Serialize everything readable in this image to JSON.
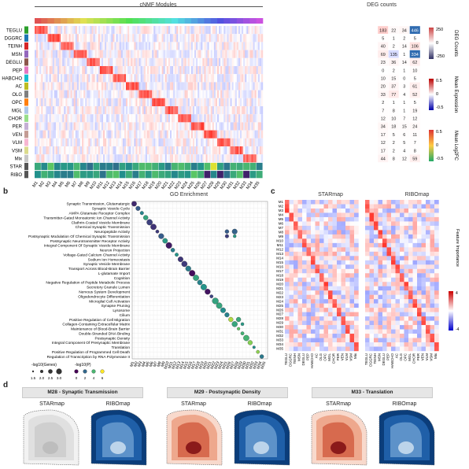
{
  "panel_a": {
    "header_left": "cNMF Modules",
    "header_right": "DEG counts",
    "row_labels": [
      "TEGLU",
      "DGGRC",
      "TEINH",
      "MSN",
      "DEGLU",
      "PEP",
      "HABCHO",
      "AC",
      "OLG",
      "OPC",
      "MGL",
      "CHOR",
      "PER",
      "VEN",
      "VLM",
      "VSM",
      "Mix",
      "STAR",
      "RIBO"
    ],
    "row_colors": [
      "#2ca02c",
      "#1f77b4",
      "#d62728",
      "#9467bd",
      "#8c564b",
      "#e377c2",
      "#17becf",
      "#bcbd22",
      "#7f7f7f",
      "#ff7f0e",
      "#aec7e8",
      "#98df8a",
      "#c5b0d5",
      "#c49c94",
      "#f7b6d2",
      "#dbdb8d",
      "#c7c7c7",
      "#555555",
      "#555555"
    ],
    "modules": [
      "M1",
      "M2",
      "M3",
      "M4",
      "M5",
      "M6",
      "M7",
      "M8",
      "M9",
      "M10",
      "M11",
      "M12",
      "M13",
      "M14",
      "M15",
      "M16",
      "M17",
      "M18",
      "M19",
      "M20",
      "M21",
      "M22",
      "M23",
      "M24",
      "M25",
      "M26",
      "M27",
      "M28",
      "M29",
      "M30",
      "M31",
      "M32",
      "M33",
      "M34",
      "M35"
    ],
    "deg_counts": [
      [
        "183",
        "22",
        "34",
        "446"
      ],
      [
        "5",
        "1",
        "2",
        "5"
      ],
      [
        "40",
        "2",
        "14",
        "106"
      ],
      [
        "69",
        "135",
        "1",
        "334"
      ],
      [
        "23",
        "36",
        "14",
        "62"
      ],
      [
        "0",
        "2",
        "1",
        "10"
      ],
      [
        "10",
        "15",
        "0",
        "5"
      ],
      [
        "20",
        "37",
        "3",
        "61"
      ],
      [
        "33",
        "77",
        "4",
        "52"
      ],
      [
        "2",
        "1",
        "1",
        "5"
      ],
      [
        "7",
        "8",
        "1",
        "19"
      ],
      [
        "12",
        "10",
        "7",
        "12"
      ],
      [
        "34",
        "18",
        "15",
        "24"
      ],
      [
        "17",
        "5",
        "6",
        "11"
      ],
      [
        "12",
        "2",
        "5",
        "7"
      ],
      [
        "17",
        "2",
        "4",
        "8"
      ],
      [
        "44",
        "8",
        "12",
        "59"
      ]
    ],
    "cbar1": {
      "title": "DEG Counts",
      "ticks": [
        "250",
        "0",
        "-250"
      ]
    },
    "cbar2": {
      "title": "Mean Expression",
      "ticks": [
        "0.5",
        "0",
        "-0.5"
      ]
    },
    "cbar3": {
      "title": "Mean Log2FC",
      "ticks": [
        "0.5",
        "0",
        "-0.5"
      ]
    }
  },
  "panel_b": {
    "letter": "b",
    "title": "GO Enrichment",
    "terms": [
      "Synaptic Transmission, Glutamatergic",
      "Synaptic Vesicle Cycle",
      "AMPA Glutamate Receptor Complex",
      "Transmitter-Gated Monoatomic Ion Channel Activity",
      "Clathrin-Coated Vesicle Membrane",
      "Chemical Synaptic Transmission",
      "Neuropeptide Activity",
      "Postsynaptic Modulation Of Chemical Synaptic Transmission",
      "Postsynaptic Neurotransmitter Receptor Activity",
      "Integral Component Of Synaptic Vesicle Membrane",
      "Neuron Projection",
      "Voltage-Gated Calcium Channel Activity",
      "Sodium Ion Homeostasis",
      "Synaptic Vesicle Membrane",
      "Transport Across Blood-Brain Barrier",
      "L-glutamate Import",
      "Cognition",
      "Negative Regulation of Peptide Metabolic Process",
      "Secretory Granule Lumen",
      "Nervous System Development",
      "Oligodendrocyte Differentiation",
      "Microglial Cell Activation",
      "Synapse Pruning",
      "Lysosome",
      "Cilium",
      "Positive Regulation of Cell Migration",
      "Collagen-Containing Extracellular Matrix",
      "Maintenance of Blood-Brain Barrier",
      "Double-Stranded DNA Binding",
      "Postsynaptic Density",
      "Integral Component Of Presynaptic Membrane",
      "Translation",
      "Positive Regulation of Programmed Cell Death",
      "Regulation of Transcription by RNA Polymerase II"
    ],
    "modules": [
      "M1",
      "M2",
      "M3",
      "M4",
      "M5",
      "M6",
      "M7",
      "M8",
      "M9",
      "M10",
      "M11",
      "M12",
      "M13",
      "M14",
      "M15",
      "M16",
      "M17",
      "M18",
      "M19",
      "M20",
      "M21",
      "M22",
      "M23",
      "M24",
      "M25",
      "M26",
      "M27",
      "M28",
      "M29",
      "M30",
      "M31",
      "M32",
      "M33",
      "M34",
      "M35"
    ],
    "size_legend_title": "-log10(Genes)",
    "size_legend_ticks": [
      "1.5",
      "2.0",
      "2.5",
      "3.0"
    ],
    "color_legend_title": "-log10(P)",
    "color_legend_ticks": [
      "0",
      "2",
      "4",
      "6"
    ]
  },
  "panel_c": {
    "letter": "c",
    "left_title": "STARmap",
    "right_title": "RIBOmap",
    "side_label": "Feature Importance",
    "scale_ticks": [
      "4",
      "-4"
    ],
    "cell_types": [
      "TEGLU",
      "DGGRC",
      "TEINH",
      "MSN",
      "DEGLU",
      "PEP",
      "HABCHO",
      "AC",
      "OLG",
      "OPC",
      "MGL",
      "CHOR",
      "PER",
      "VEN",
      "VLM",
      "VSM",
      "Mix"
    ],
    "modules": [
      "M1",
      "M2",
      "M3",
      "M4",
      "M5",
      "M6",
      "M7",
      "M8",
      "M9",
      "M10",
      "M11",
      "M12",
      "M13",
      "M14",
      "M15",
      "M16",
      "M17",
      "M18",
      "M19",
      "M20",
      "M21",
      "M22",
      "M23",
      "M24",
      "M25",
      "M26",
      "M27",
      "M28",
      "M29",
      "M30",
      "M31",
      "M32",
      "M33",
      "M34",
      "M35"
    ]
  },
  "panel_d": {
    "letter": "d",
    "groups": [
      {
        "title": "M28 - Synaptic Transmission",
        "left": "STARmap",
        "right": "RIBOmap"
      },
      {
        "title": "M29 - Postsynaptic Density",
        "left": "STARmap",
        "right": "RIBOmap"
      },
      {
        "title": "M33 - Translation",
        "left": "STARmap",
        "right": "RIBOmap"
      }
    ]
  }
}
